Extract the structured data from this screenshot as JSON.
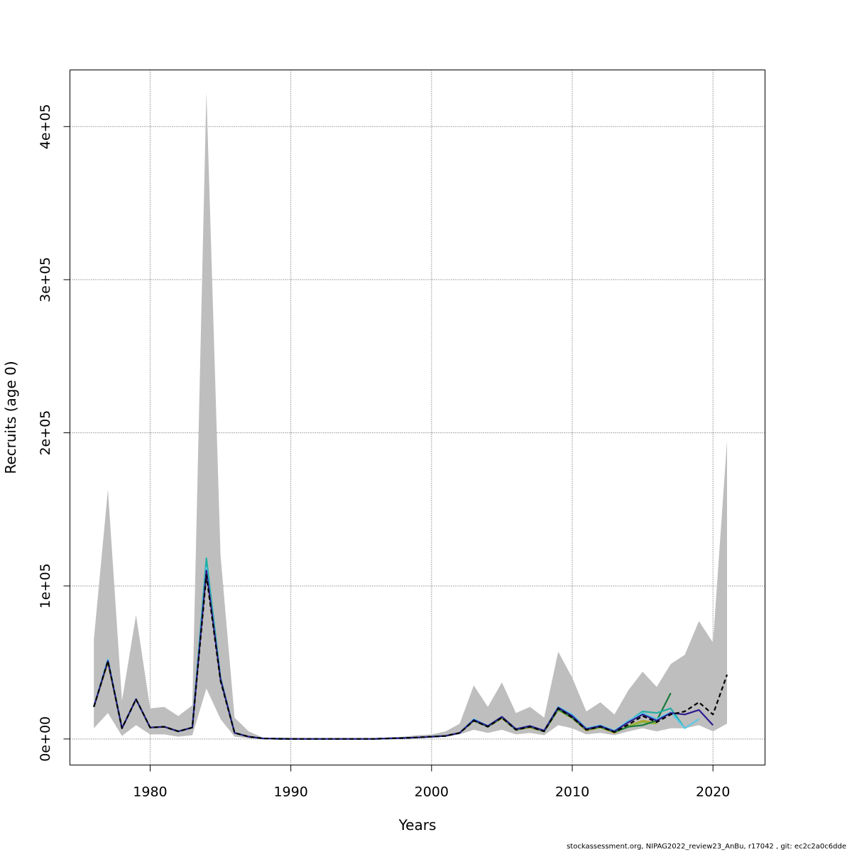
{
  "chart_data": {
    "type": "line",
    "xlabel": "Years",
    "ylabel": "Recruits (age 0)",
    "xlim": [
      1974.3,
      2023.7
    ],
    "ylim": [
      -17000,
      437000
    ],
    "x_ticks": [
      1980,
      1990,
      2000,
      2010,
      2020
    ],
    "x_tick_labels": [
      "1980",
      "1990",
      "2000",
      "2010",
      "2020"
    ],
    "y_ticks": [
      0,
      100000,
      200000,
      300000,
      400000
    ],
    "y_tick_labels": [
      "0e+00",
      "1e+05",
      "2e+05",
      "3e+05",
      "4e+05"
    ],
    "grid": true,
    "band": {
      "color": "#bebebe",
      "x": [
        1976,
        1977,
        1978,
        1979,
        1980,
        1981,
        1982,
        1983,
        1984,
        1985,
        1986,
        1987,
        1988,
        1989,
        1990,
        1991,
        1992,
        1993,
        1994,
        1995,
        1996,
        1997,
        1998,
        1999,
        2000,
        2001,
        2002,
        2003,
        2004,
        2005,
        2006,
        2007,
        2008,
        2009,
        2010,
        2011,
        2012,
        2013,
        2014,
        2015,
        2016,
        2017,
        2018,
        2019,
        2020,
        2021
      ],
      "upper": [
        65000,
        163000,
        25000,
        81000,
        20000,
        21000,
        15000,
        22000,
        423000,
        120000,
        14000,
        5000,
        1000,
        500,
        300,
        200,
        200,
        200,
        200,
        200,
        300,
        1000,
        1500,
        2500,
        3000,
        5000,
        10000,
        35000,
        21000,
        37000,
        17000,
        21000,
        14000,
        57000,
        40000,
        18000,
        24000,
        16000,
        32000,
        44000,
        34000,
        49000,
        55000,
        77000,
        63000,
        195000
      ],
      "lower": [
        7000,
        17000,
        2000,
        9000,
        3000,
        3000,
        1500,
        2500,
        33000,
        13000,
        1500,
        500,
        200,
        100,
        100,
        50,
        50,
        50,
        50,
        50,
        100,
        300,
        500,
        800,
        1000,
        1500,
        3000,
        6000,
        4000,
        6000,
        3000,
        4000,
        2500,
        9000,
        7000,
        3000,
        4000,
        2500,
        5000,
        7000,
        5000,
        7000,
        7000,
        9000,
        5000,
        10000
      ]
    },
    "series": [
      {
        "color": "#000000",
        "dashed": true,
        "x": [
          1976,
          1977,
          1978,
          1979,
          1980,
          1981,
          1982,
          1983,
          1984,
          1985,
          1986,
          1987,
          1988,
          1989,
          1990,
          1991,
          1992,
          1993,
          1994,
          1995,
          1996,
          1997,
          1998,
          1999,
          2000,
          2001,
          2002,
          2003,
          2004,
          2005,
          2006,
          2007,
          2008,
          2009,
          2010,
          2011,
          2012,
          2013,
          2014,
          2015,
          2016,
          2017,
          2018,
          2019,
          2020,
          2021
        ],
        "y": [
          21000,
          51000,
          7000,
          26000,
          7500,
          8000,
          5000,
          7500,
          107000,
          38000,
          4000,
          1500,
          400,
          150,
          100,
          80,
          80,
          80,
          80,
          80,
          120,
          400,
          600,
          1000,
          1500,
          2000,
          4000,
          12000,
          8000,
          14000,
          6000,
          8000,
          5000,
          20000,
          14000,
          6000,
          8000,
          4500,
          9500,
          15000,
          11000,
          16000,
          18000,
          24000,
          16000,
          42000
        ]
      },
      {
        "color": "#2d1b8f",
        "dashed": false,
        "x": [
          1976,
          1977,
          1978,
          1979,
          1980,
          1981,
          1982,
          1983,
          1984,
          1985,
          1986,
          1987,
          1988,
          1989,
          1990,
          1991,
          1992,
          1993,
          1994,
          1995,
          1996,
          1997,
          1998,
          1999,
          2000,
          2001,
          2002,
          2003,
          2004,
          2005,
          2006,
          2007,
          2008,
          2009,
          2010,
          2011,
          2012,
          2013,
          2014,
          2015,
          2016,
          2017,
          2018,
          2019,
          2020
        ],
        "y": [
          21000,
          51000,
          7000,
          26000,
          7500,
          8000,
          5000,
          7500,
          110000,
          39000,
          4000,
          1500,
          400,
          150,
          100,
          80,
          80,
          80,
          80,
          80,
          120,
          400,
          600,
          1000,
          1500,
          2000,
          4000,
          12500,
          8500,
          14500,
          6500,
          8500,
          5500,
          20500,
          15000,
          6500,
          8500,
          5000,
          11000,
          16000,
          12000,
          17000,
          16000,
          19000,
          9000
        ]
      },
      {
        "color": "#5bc8e8",
        "dashed": false,
        "x": [
          1976,
          1977,
          1978,
          1979,
          1980,
          1981,
          1982,
          1983,
          1984,
          1985,
          1986,
          1987,
          1988,
          1989,
          1990,
          1991,
          1992,
          1993,
          1994,
          1995,
          1996,
          1997,
          1998,
          1999,
          2000,
          2001,
          2002,
          2003,
          2004,
          2005,
          2006,
          2007,
          2008,
          2009,
          2010,
          2011,
          2012,
          2013,
          2014,
          2015,
          2016,
          2017,
          2018,
          2019
        ],
        "y": [
          21000,
          52000,
          7000,
          26000,
          7500,
          8000,
          5000,
          7500,
          112000,
          39000,
          4000,
          1500,
          400,
          150,
          100,
          80,
          80,
          80,
          80,
          80,
          120,
          400,
          600,
          1000,
          1500,
          2000,
          4000,
          13000,
          8500,
          14500,
          6500,
          8500,
          5500,
          21000,
          16000,
          7000,
          9000,
          5500,
          12000,
          17000,
          13000,
          17500,
          7000,
          13000
        ]
      },
      {
        "color": "#21b0a6",
        "dashed": false,
        "x": [
          1976,
          1977,
          1978,
          1979,
          1980,
          1981,
          1982,
          1983,
          1984,
          1985,
          1986,
          1987,
          1988,
          1989,
          1990,
          1991,
          1992,
          1993,
          1994,
          1995,
          1996,
          1997,
          1998,
          1999,
          2000,
          2001,
          2002,
          2003,
          2004,
          2005,
          2006,
          2007,
          2008,
          2009,
          2010,
          2011,
          2012,
          2013,
          2014,
          2015,
          2016,
          2017,
          2018
        ],
        "y": [
          21000,
          52000,
          7000,
          26000,
          7500,
          8000,
          5000,
          7500,
          118000,
          40000,
          4000,
          1500,
          400,
          150,
          100,
          80,
          80,
          80,
          80,
          80,
          120,
          400,
          600,
          1000,
          1500,
          2000,
          4000,
          12500,
          8500,
          14500,
          6500,
          8500,
          5500,
          20500,
          15000,
          6500,
          8500,
          5000,
          11500,
          18000,
          17000,
          20000,
          7000
        ]
      },
      {
        "color": "#1a7a3a",
        "dashed": false,
        "x": [
          1976,
          1977,
          1978,
          1979,
          1980,
          1981,
          1982,
          1983,
          1984,
          1985,
          1986,
          1987,
          1988,
          1989,
          1990,
          1991,
          1992,
          1993,
          1994,
          1995,
          1996,
          1997,
          1998,
          1999,
          2000,
          2001,
          2002,
          2003,
          2004,
          2005,
          2006,
          2007,
          2008,
          2009,
          2010,
          2011,
          2012,
          2013,
          2014,
          2015,
          2016,
          2017
        ],
        "y": [
          21000,
          51000,
          7000,
          26000,
          7500,
          8000,
          5000,
          7500,
          113000,
          39000,
          4000,
          1500,
          400,
          150,
          100,
          80,
          80,
          80,
          80,
          80,
          120,
          400,
          600,
          1000,
          1500,
          2000,
          4000,
          12000,
          8000,
          14000,
          6000,
          8000,
          5000,
          19500,
          14000,
          6000,
          8000,
          4500,
          8000,
          9000,
          12000,
          30000
        ]
      },
      {
        "color": "#8db63c",
        "dashed": false,
        "x": [
          1976,
          1977,
          1978,
          1979,
          1980,
          1981,
          1982,
          1983,
          1984,
          1985,
          1986,
          1987,
          1988,
          1989,
          1990,
          1991,
          1992,
          1993,
          1994,
          1995,
          1996,
          1997,
          1998,
          1999,
          2000,
          2001,
          2002,
          2003,
          2004,
          2005,
          2006,
          2007,
          2008,
          2009,
          2010,
          2011,
          2012,
          2013,
          2014,
          2015,
          2016
        ],
        "y": [
          21000,
          51000,
          7000,
          26000,
          7500,
          8000,
          5000,
          7500,
          115000,
          39000,
          4000,
          1500,
          400,
          150,
          100,
          80,
          80,
          80,
          80,
          80,
          120,
          400,
          600,
          1000,
          1500,
          2000,
          4000,
          12000,
          8000,
          14000,
          6000,
          8000,
          5000,
          19000,
          13500,
          6000,
          7500,
          4500,
          8500,
          11000,
          10000
        ]
      },
      {
        "color": "#b5a030",
        "dashed": false,
        "x": [
          1976,
          1977,
          1978,
          1979,
          1980,
          1981,
          1982,
          1983,
          1984,
          1985,
          1986,
          1987,
          1988,
          1989,
          1990,
          1991,
          1992,
          1993,
          1994,
          1995,
          1996,
          1997,
          1998,
          1999,
          2000,
          2001,
          2002,
          2003,
          2004,
          2005,
          2006,
          2007,
          2008,
          2009,
          2010,
          2011,
          2012,
          2013,
          2014,
          2015,
          2016
        ],
        "y": [
          21000,
          50000,
          7000,
          26000,
          7500,
          8000,
          5000,
          7500,
          114000,
          39000,
          4000,
          1500,
          400,
          150,
          100,
          80,
          80,
          80,
          80,
          80,
          120,
          400,
          600,
          1000,
          1500,
          2000,
          4000,
          12000,
          8000,
          13500,
          6000,
          7500,
          5000,
          19000,
          13500,
          5500,
          7500,
          4000,
          8500,
          12000,
          10500
        ]
      }
    ]
  },
  "footer": "stockassessment.org, NIPAG2022_review23_AnBu, r17042 , git: ec2c2a0c6dde"
}
